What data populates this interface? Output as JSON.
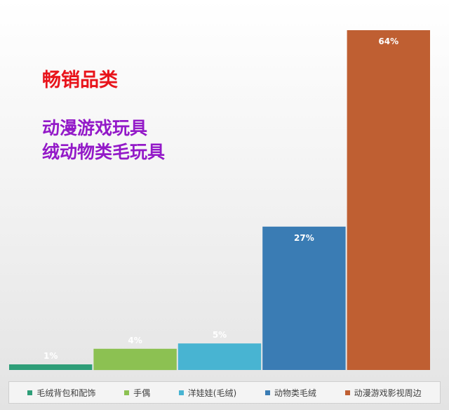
{
  "headline": "畅销品类",
  "sub_lines": [
    "动漫游戏玩具",
    "绒动物类毛玩具"
  ],
  "chart_data": {
    "type": "bar",
    "categories": [
      "毛绒背包和配饰",
      "手偶",
      "洋娃娃(毛绒)",
      "动物类毛绒",
      "动漫游戏影视周边"
    ],
    "values": [
      1,
      4,
      5,
      27,
      64
    ],
    "data_labels": [
      "1%",
      "4%",
      "5%",
      "27%",
      "64%"
    ],
    "colors": [
      "#2e9e78",
      "#8cc152",
      "#48b4d2",
      "#3a7cb4",
      "#bf5f32"
    ],
    "ylim": [
      0,
      64
    ],
    "grid": false,
    "legend_position": "bottom"
  }
}
